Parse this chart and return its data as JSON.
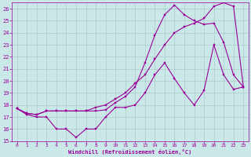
{
  "xlabel": "Windchill (Refroidissement éolien,°C)",
  "background_color": "#cbe8e8",
  "grid_color": "#a0b8b8",
  "line_color": "#990099",
  "xlim": [
    -0.5,
    23.5
  ],
  "ylim": [
    15,
    26.5
  ],
  "yticks": [
    15,
    16,
    17,
    18,
    19,
    20,
    21,
    22,
    23,
    24,
    25,
    26
  ],
  "xticks": [
    0,
    1,
    2,
    3,
    4,
    5,
    6,
    7,
    8,
    9,
    10,
    11,
    12,
    13,
    14,
    15,
    16,
    17,
    18,
    19,
    20,
    21,
    22,
    23
  ],
  "line1_x": [
    0,
    1,
    2,
    3,
    4,
    5,
    6,
    7,
    8,
    9,
    10,
    11,
    12,
    13,
    14,
    15,
    16,
    17,
    18,
    19,
    20,
    21,
    22,
    23
  ],
  "line1_y": [
    17.7,
    17.2,
    17.0,
    17.0,
    16.0,
    16.0,
    15.3,
    16.0,
    16.0,
    17.0,
    17.8,
    17.8,
    18.0,
    19.0,
    20.5,
    21.5,
    20.2,
    19.0,
    18.0,
    19.2,
    23.0,
    20.5,
    19.3,
    19.5
  ],
  "line2_x": [
    0,
    1,
    2,
    3,
    4,
    5,
    6,
    7,
    8,
    9,
    10,
    11,
    12,
    13,
    14,
    15,
    16,
    17,
    18,
    19,
    20,
    21,
    22,
    23
  ],
  "line2_y": [
    17.7,
    17.3,
    17.2,
    17.5,
    17.5,
    17.5,
    17.5,
    17.5,
    17.5,
    17.6,
    18.2,
    18.7,
    19.5,
    21.5,
    23.8,
    25.5,
    26.3,
    25.5,
    25.0,
    24.7,
    24.8,
    23.2,
    20.5,
    19.5
  ],
  "line3_x": [
    0,
    1,
    2,
    3,
    4,
    5,
    6,
    7,
    8,
    9,
    10,
    11,
    12,
    13,
    14,
    15,
    16,
    17,
    18,
    19,
    20,
    21,
    22,
    23
  ],
  "line3_y": [
    17.7,
    17.3,
    17.2,
    17.5,
    17.5,
    17.5,
    17.5,
    17.5,
    17.8,
    18.0,
    18.5,
    19.0,
    19.8,
    20.5,
    21.8,
    23.0,
    24.0,
    24.5,
    24.8,
    25.2,
    26.2,
    26.5,
    26.2,
    19.5
  ]
}
